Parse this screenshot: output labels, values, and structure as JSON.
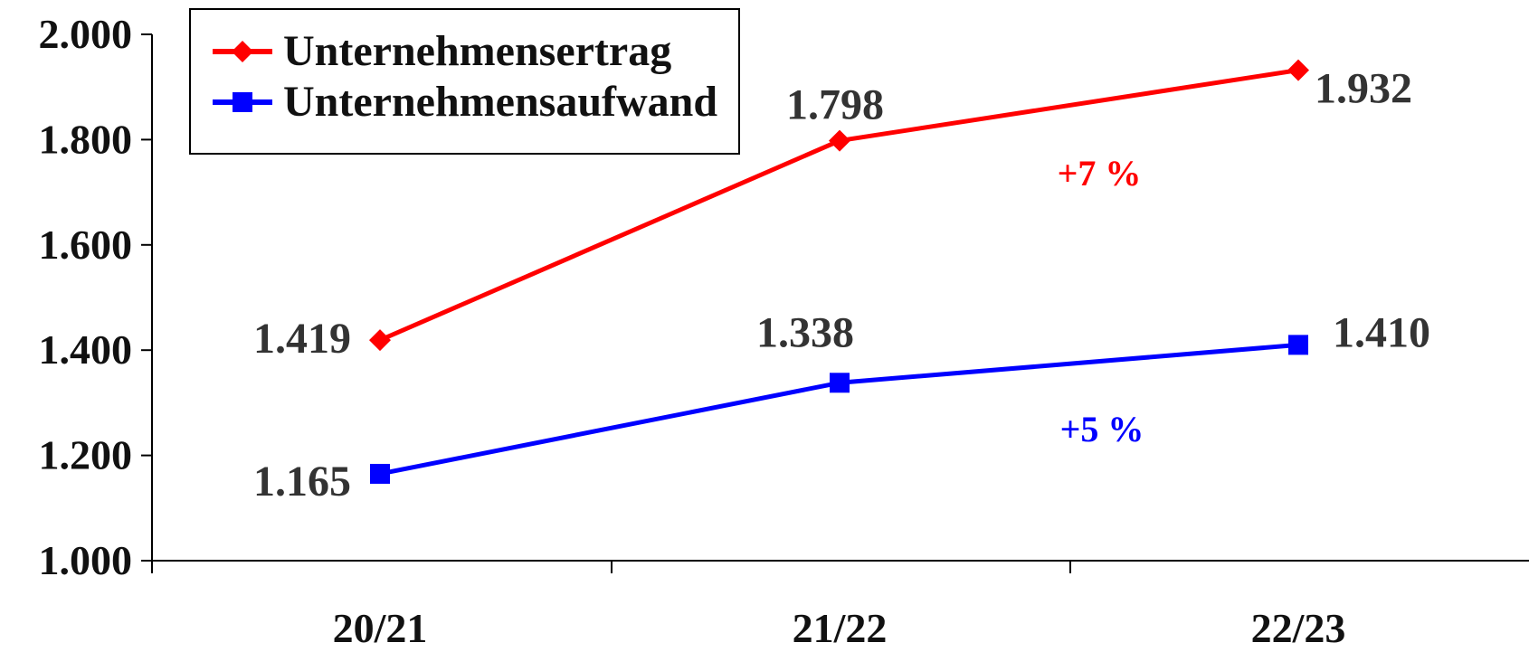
{
  "chart_data": {
    "type": "line",
    "categories": [
      "20/21",
      "21/22",
      "22/23"
    ],
    "series": [
      {
        "name": "Unternehmensertrag",
        "values": [
          1419,
          1798,
          1932
        ],
        "labels": [
          "1.419",
          "1.798",
          "1.932"
        ],
        "color": "#ff0000",
        "marker": "diamond"
      },
      {
        "name": "Unternehmensaufwand",
        "values": [
          1165,
          1338,
          1410
        ],
        "labels": [
          "1.165",
          "1.338",
          "1.410"
        ],
        "color": "#0000ff",
        "marker": "square"
      }
    ],
    "ylim": [
      1000,
      2000
    ],
    "yticks": [
      1000,
      1200,
      1400,
      1600,
      1800,
      2000
    ],
    "ytick_labels": [
      "1.000",
      "1.200",
      "1.400",
      "1.600",
      "1.800",
      "2.000"
    ],
    "legend_position": "top-left",
    "grid": false,
    "annotations": [
      {
        "text": "+7 %",
        "color": "#ff0000",
        "series": "Unternehmensertrag"
      },
      {
        "text": "+5 %",
        "color": "#0000ff",
        "series": "Unternehmensaufwand"
      }
    ]
  },
  "legend": {
    "items": [
      {
        "label": "Unternehmensertrag"
      },
      {
        "label": "Unternehmensaufwand"
      }
    ]
  }
}
